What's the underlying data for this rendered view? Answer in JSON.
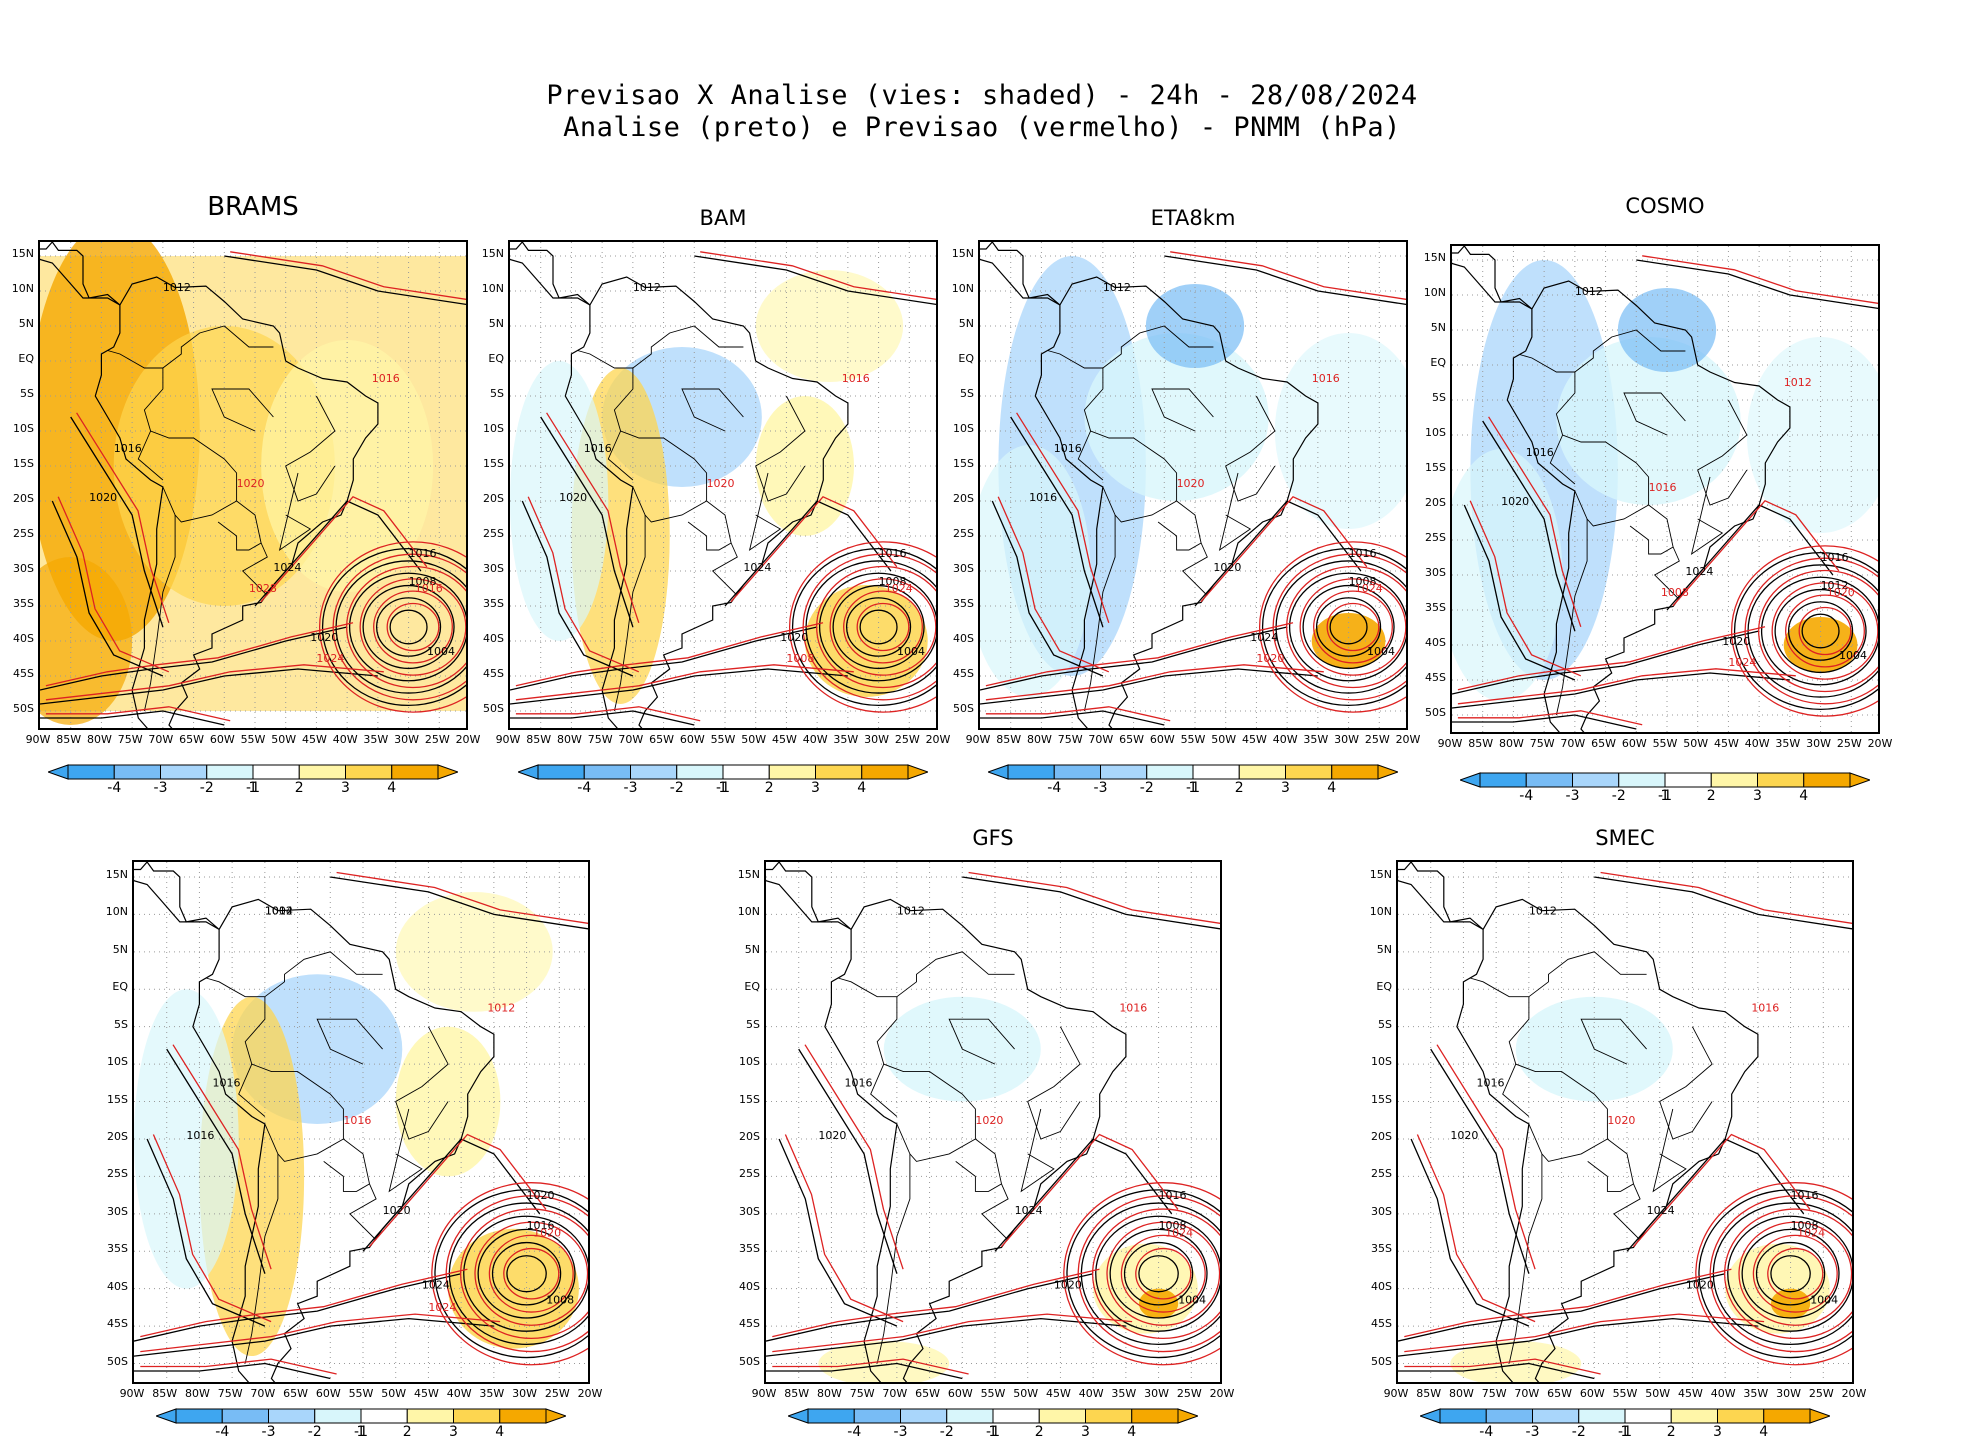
{
  "header": {
    "line1": "Previsao X Analise (vies: shaded) - 24h - 28/08/2024",
    "line2": "Analise (preto) e Previsao (vermelho) - PNMM (hPa)"
  },
  "lat_labels": [
    "15N",
    "10N",
    "5N",
    "EQ",
    "5S",
    "10S",
    "15S",
    "20S",
    "25S",
    "30S",
    "35S",
    "40S",
    "45S",
    "50S"
  ],
  "lon_labels": [
    "90W",
    "85W",
    "80W",
    "75W",
    "70W",
    "65W",
    "60W",
    "55W",
    "50W",
    "45W",
    "40W",
    "35W",
    "30W",
    "25W",
    "20W"
  ],
  "colorbar": {
    "labels": [
      "-4",
      "-3",
      "-2",
      "-1",
      "1",
      "2",
      "3",
      "4"
    ],
    "colors": [
      "#3ea6f0",
      "#78bcf5",
      "#a9d6fb",
      "#d8f6fb",
      "#ffffff",
      "#fff6a8",
      "#fdd650",
      "#f5a800"
    ]
  },
  "colors": {
    "analysis": "#000000",
    "forecast": "#dd2222",
    "grid": "#9a9a9a"
  },
  "panels": [
    {
      "name": "BRAMS",
      "bias": "warm",
      "isobars_black": [
        "1012",
        "1016",
        "1020",
        "1024",
        "1020",
        "1016",
        "1008",
        "1004"
      ],
      "isobars_red": [
        "1016",
        "1020",
        "1016",
        "1024",
        "1028"
      ]
    },
    {
      "name": "BAM",
      "bias": "mixed",
      "isobars_black": [
        "1012",
        "1016",
        "1020",
        "1024",
        "1020",
        "1016",
        "1008",
        "1004"
      ],
      "isobars_red": [
        "1016",
        "1020",
        "1024",
        "1008"
      ]
    },
    {
      "name": "ETA8km",
      "bias": "cool",
      "isobars_black": [
        "1012",
        "1016",
        "1016",
        "1020",
        "1024",
        "1016",
        "1008",
        "1004"
      ],
      "isobars_red": [
        "1016",
        "1020",
        "1024",
        "1020"
      ]
    },
    {
      "name": "COSMO",
      "bias": "cool",
      "isobars_black": [
        "1012",
        "1016",
        "1020",
        "1024",
        "1020",
        "1016",
        "1012",
        "1004"
      ],
      "isobars_red": [
        "1012",
        "1016",
        "1020",
        "1024",
        "1008"
      ]
    },
    {
      "name": "",
      "bias": "mixed",
      "isobars_black": [
        "1012",
        "1016",
        "1016",
        "1020",
        "1024",
        "1020",
        "1016",
        "1008",
        "1004"
      ],
      "isobars_red": [
        "1012",
        "1016",
        "1020",
        "1024"
      ]
    },
    {
      "name": "GFS",
      "bias": "light",
      "isobars_black": [
        "1012",
        "1016",
        "1020",
        "1024",
        "1020",
        "1016",
        "1008",
        "1004"
      ],
      "isobars_red": [
        "1016",
        "1020",
        "1024"
      ]
    },
    {
      "name": "SMEC",
      "bias": "light",
      "isobars_black": [
        "1012",
        "1016",
        "1020",
        "1024",
        "1020",
        "1016",
        "1008",
        "1004"
      ],
      "isobars_red": [
        "1016",
        "1020",
        "1024"
      ]
    }
  ]
}
